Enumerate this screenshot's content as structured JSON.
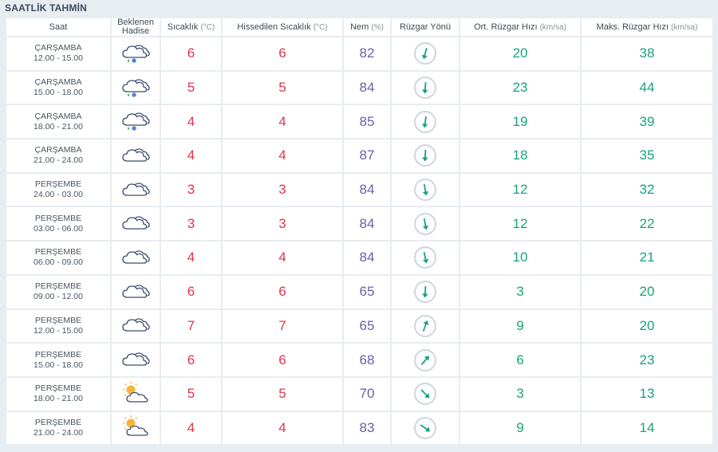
{
  "title": "SAATLİK TAHMİN",
  "headers": {
    "saat": "Saat",
    "hadise_1": "Beklenen",
    "hadise_2": "Hadise",
    "sicaklik": "Sıcaklık",
    "sicaklik_unit": "(°C)",
    "hissedilen": "Hissedilen Sıcaklık",
    "hissedilen_unit": "(°C)",
    "nem": "Nem",
    "nem_unit": "(%)",
    "ruzgar_yonu": "Rüzgar Yönü",
    "ort_ruzgar": "Ort. Rüzgar Hızı",
    "ort_ruzgar_unit": "(km/sa)",
    "maks_ruzgar": "Maks. Rüzgar Hızı",
    "maks_ruzgar_unit": "(km/sa)"
  },
  "rows": [
    {
      "day": "ÇARŞAMBA",
      "time": "12.00 - 15.00",
      "icon": "sleet-cloud-icon",
      "temp": "6",
      "feels": "6",
      "humidity": "82",
      "wind_rotation_deg": 15,
      "wind_avg": "20",
      "wind_max": "38"
    },
    {
      "day": "ÇARŞAMBA",
      "time": "15.00 - 18.00",
      "icon": "sleet-cloud-icon",
      "temp": "5",
      "feels": "5",
      "humidity": "84",
      "wind_rotation_deg": 5,
      "wind_avg": "23",
      "wind_max": "44"
    },
    {
      "day": "ÇARŞAMBA",
      "time": "18.00 - 21.00",
      "icon": "sleet-cloud-icon",
      "temp": "4",
      "feels": "4",
      "humidity": "85",
      "wind_rotation_deg": 8,
      "wind_avg": "19",
      "wind_max": "39"
    },
    {
      "day": "ÇARŞAMBA",
      "time": "21.00 - 24.00",
      "icon": "cloud-icon",
      "temp": "4",
      "feels": "4",
      "humidity": "87",
      "wind_rotation_deg": 3,
      "wind_avg": "18",
      "wind_max": "35"
    },
    {
      "day": "PERŞEMBE",
      "time": "24.00 - 03.00",
      "icon": "cloud-icon",
      "temp": "3",
      "feels": "3",
      "humidity": "84",
      "wind_rotation_deg": -10,
      "wind_avg": "12",
      "wind_max": "32"
    },
    {
      "day": "PERŞEMBE",
      "time": "03.00 - 06.00",
      "icon": "cloud-icon",
      "temp": "3",
      "feels": "3",
      "humidity": "84",
      "wind_rotation_deg": -10,
      "wind_avg": "12",
      "wind_max": "22"
    },
    {
      "day": "PERŞEMBE",
      "time": "06.00 - 09.00",
      "icon": "cloud-icon",
      "temp": "4",
      "feels": "4",
      "humidity": "84",
      "wind_rotation_deg": -12,
      "wind_avg": "10",
      "wind_max": "21"
    },
    {
      "day": "PERŞEMBE",
      "time": "09.00 - 12.00",
      "icon": "cloud-icon",
      "temp": "6",
      "feels": "6",
      "humidity": "65",
      "wind_rotation_deg": 3,
      "wind_avg": "3",
      "wind_max": "20"
    },
    {
      "day": "PERŞEMBE",
      "time": "12.00 - 15.00",
      "icon": "cloud-icon",
      "temp": "7",
      "feels": "7",
      "humidity": "65",
      "wind_rotation_deg": -160,
      "wind_avg": "9",
      "wind_max": "20"
    },
    {
      "day": "PERŞEMBE",
      "time": "15.00 - 18.00",
      "icon": "cloud-icon",
      "temp": "6",
      "feels": "6",
      "humidity": "68",
      "wind_rotation_deg": -140,
      "wind_avg": "6",
      "wind_max": "23"
    },
    {
      "day": "PERŞEMBE",
      "time": "18.00 - 21.00",
      "icon": "partly-sunny-icon",
      "temp": "5",
      "feels": "5",
      "humidity": "70",
      "wind_rotation_deg": -45,
      "wind_avg": "3",
      "wind_max": "13"
    },
    {
      "day": "PERŞEMBE",
      "time": "21.00 - 24.00",
      "icon": "partly-sunny-icon",
      "temp": "4",
      "feels": "4",
      "humidity": "83",
      "wind_rotation_deg": -55,
      "wind_avg": "9",
      "wind_max": "14"
    }
  ],
  "colors": {
    "temp": "#e0354b",
    "humidity": "#6b5ea8",
    "wind": "#17a37a",
    "icon_outline": "#3b4c6b",
    "sun": "#f5b53a"
  }
}
